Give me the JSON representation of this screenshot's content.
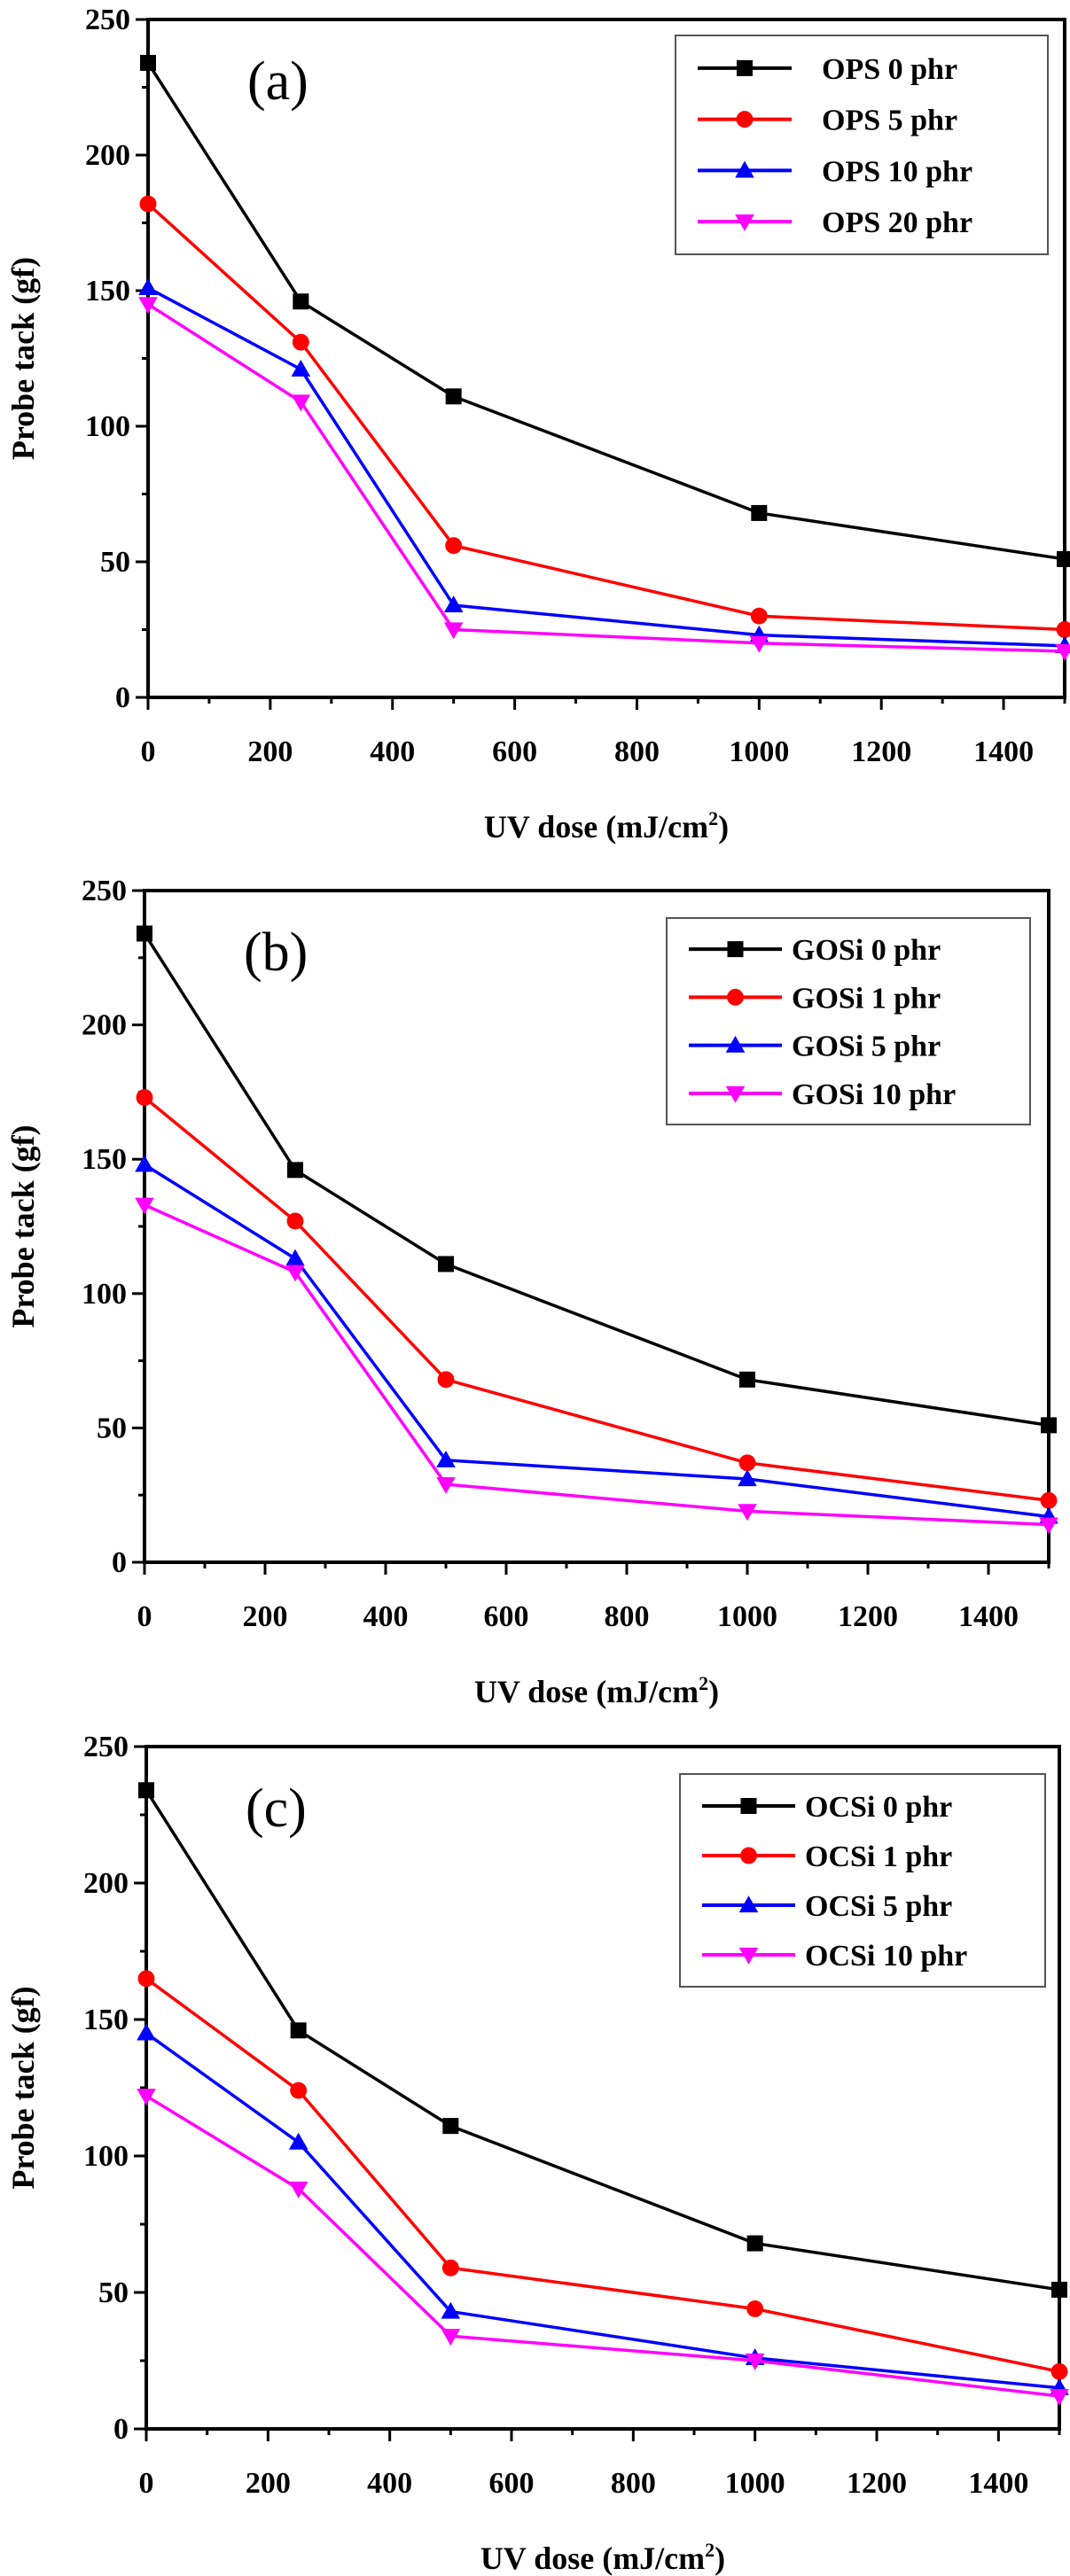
{
  "chart_data": [
    {
      "type": "line",
      "panel_label": "(a)",
      "xlabel": "UV dose (mJ/cm",
      "xlabel_superscript": "2",
      "xlabel_suffix": ")",
      "ylabel": "Probe tack (gf)",
      "xlim": [
        0,
        1500
      ],
      "ylim": [
        0,
        250
      ],
      "xticks": [
        0,
        200,
        400,
        600,
        800,
        1000,
        1200,
        1400
      ],
      "yticks": [
        0,
        50,
        100,
        150,
        200,
        250
      ],
      "grid": false,
      "legend_position": "top-right",
      "x": [
        0,
        250,
        500,
        1000,
        1500
      ],
      "series": [
        {
          "name": "OPS 0 phr",
          "color": "#000000",
          "marker": "square",
          "values": [
            234,
            146,
            111,
            68,
            51
          ]
        },
        {
          "name": "OPS 5 phr",
          "color": "#ff0000",
          "marker": "circle",
          "values": [
            182,
            131,
            56,
            30,
            25
          ]
        },
        {
          "name": "OPS 10 phr",
          "color": "#0000ff",
          "marker": "triangle-up",
          "values": [
            151,
            121,
            34,
            23,
            19
          ]
        },
        {
          "name": "OPS 20 phr",
          "color": "#ff00ff",
          "marker": "triangle-down",
          "values": [
            145,
            109,
            25,
            20,
            17
          ]
        }
      ]
    },
    {
      "type": "line",
      "panel_label": "(b)",
      "xlabel": "UV dose (mJ/cm",
      "xlabel_superscript": "2",
      "xlabel_suffix": ")",
      "ylabel": "Probe tack (gf)",
      "xlim": [
        0,
        1500
      ],
      "ylim": [
        0,
        250
      ],
      "xticks": [
        0,
        200,
        400,
        600,
        800,
        1000,
        1200,
        1400
      ],
      "yticks": [
        0,
        50,
        100,
        150,
        200,
        250
      ],
      "grid": false,
      "legend_position": "top-right",
      "x": [
        0,
        250,
        500,
        1000,
        1500
      ],
      "series": [
        {
          "name": "GOSi 0 phr",
          "color": "#000000",
          "marker": "square",
          "values": [
            234,
            146,
            111,
            68,
            51
          ]
        },
        {
          "name": "GOSi 1 phr",
          "color": "#ff0000",
          "marker": "circle",
          "values": [
            173,
            127,
            68,
            37,
            23
          ]
        },
        {
          "name": "GOSi 5 phr",
          "color": "#0000ff",
          "marker": "triangle-up",
          "values": [
            148,
            113,
            38,
            31,
            17
          ]
        },
        {
          "name": "GOSi 10 phr",
          "color": "#ff00ff",
          "marker": "triangle-down",
          "values": [
            133,
            108,
            29,
            19,
            14
          ]
        }
      ]
    },
    {
      "type": "line",
      "panel_label": "(c)",
      "xlabel": "UV dose (mJ/cm",
      "xlabel_superscript": "2",
      "xlabel_suffix": ")",
      "ylabel": "Probe tack (gf)",
      "xlim": [
        0,
        1500
      ],
      "ylim": [
        0,
        250
      ],
      "xticks": [
        0,
        200,
        400,
        600,
        800,
        1000,
        1200,
        1400
      ],
      "yticks": [
        0,
        50,
        100,
        150,
        200,
        250
      ],
      "grid": false,
      "legend_position": "top-right",
      "x": [
        0,
        250,
        500,
        1000,
        1500
      ],
      "series": [
        {
          "name": "OCSi 0 phr",
          "color": "#000000",
          "marker": "square",
          "values": [
            234,
            146,
            111,
            68,
            51
          ]
        },
        {
          "name": "OCSi 1 phr",
          "color": "#ff0000",
          "marker": "circle",
          "values": [
            165,
            124,
            59,
            44,
            21
          ]
        },
        {
          "name": "OCSi 5 phr",
          "color": "#0000ff",
          "marker": "triangle-up",
          "values": [
            145,
            105,
            43,
            26,
            15
          ]
        },
        {
          "name": "OCSi 10 phr",
          "color": "#ff00ff",
          "marker": "triangle-down",
          "values": [
            122,
            88,
            34,
            25,
            12
          ]
        }
      ]
    }
  ]
}
